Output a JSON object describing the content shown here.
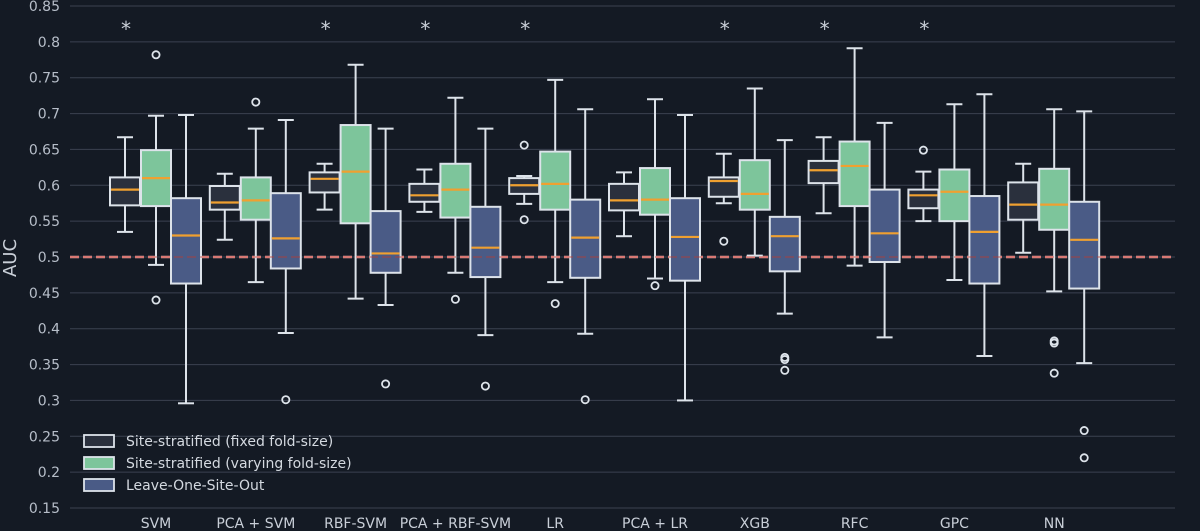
{
  "chart_data": {
    "type": "box",
    "ylabel": "AUC",
    "ylim": [
      0.15,
      0.85
    ],
    "yticks": [
      "0.15",
      "0.2",
      "0.25",
      "0.3",
      "0.35",
      "0.4",
      "0.45",
      "0.5",
      "0.55",
      "0.6",
      "0.65",
      "0.7",
      "0.75",
      "0.8",
      "0.85"
    ],
    "grid": "horizontal",
    "legend_position": "bottom-left",
    "reference_line": 0.5,
    "significance_marker": "*",
    "colors": {
      "background": "#141a24",
      "grid": "#3b4250",
      "fixed": "#2a303d",
      "varying": "#7dc59b",
      "loso": "#4a5b86",
      "median": "#f0a030",
      "outline": "#dde3ea",
      "reference": "#e8a0a0"
    },
    "series": [
      {
        "name": "Site-stratified (fixed fold-size)",
        "key": "fixed"
      },
      {
        "name": "Site-stratified (varying fold-size)",
        "key": "varying"
      },
      {
        "name": "Leave-One-Site-Out",
        "key": "loso"
      }
    ],
    "categories": [
      {
        "label": "SVM",
        "significant": true,
        "boxes": [
          {
            "whislo": 0.535,
            "q1": 0.572,
            "med": 0.594,
            "q3": 0.611,
            "whishi": 0.667,
            "fliers": []
          },
          {
            "whislo": 0.489,
            "q1": 0.571,
            "med": 0.61,
            "q3": 0.649,
            "whishi": 0.697,
            "fliers": [
              0.782,
              0.44
            ]
          },
          {
            "whislo": 0.296,
            "q1": 0.463,
            "med": 0.53,
            "q3": 0.582,
            "whishi": 0.698,
            "fliers": []
          }
        ]
      },
      {
        "label": "PCA + SVM",
        "significant": false,
        "boxes": [
          {
            "whislo": 0.524,
            "q1": 0.566,
            "med": 0.576,
            "q3": 0.599,
            "whishi": 0.616,
            "fliers": []
          },
          {
            "whislo": 0.465,
            "q1": 0.552,
            "med": 0.579,
            "q3": 0.611,
            "whishi": 0.679,
            "fliers": [
              0.716
            ]
          },
          {
            "whislo": 0.394,
            "q1": 0.484,
            "med": 0.526,
            "q3": 0.589,
            "whishi": 0.691,
            "fliers": [
              0.301
            ]
          }
        ]
      },
      {
        "label": "RBF-SVM",
        "significant": true,
        "boxes": [
          {
            "whislo": 0.566,
            "q1": 0.59,
            "med": 0.609,
            "q3": 0.618,
            "whishi": 0.63,
            "fliers": []
          },
          {
            "whislo": 0.442,
            "q1": 0.547,
            "med": 0.619,
            "q3": 0.684,
            "whishi": 0.768,
            "fliers": []
          },
          {
            "whislo": 0.433,
            "q1": 0.478,
            "med": 0.505,
            "q3": 0.564,
            "whishi": 0.679,
            "fliers": [
              0.323
            ]
          }
        ]
      },
      {
        "label": "PCA + RBF-SVM",
        "significant": true,
        "boxes": [
          {
            "whislo": 0.563,
            "q1": 0.577,
            "med": 0.586,
            "q3": 0.602,
            "whishi": 0.622,
            "fliers": []
          },
          {
            "whislo": 0.478,
            "q1": 0.555,
            "med": 0.594,
            "q3": 0.63,
            "whishi": 0.722,
            "fliers": [
              0.441
            ]
          },
          {
            "whislo": 0.391,
            "q1": 0.472,
            "med": 0.513,
            "q3": 0.57,
            "whishi": 0.679,
            "fliers": [
              0.32
            ]
          }
        ]
      },
      {
        "label": "LR",
        "significant": true,
        "boxes": [
          {
            "whislo": 0.574,
            "q1": 0.588,
            "med": 0.6,
            "q3": 0.61,
            "whishi": 0.613,
            "fliers": [
              0.656,
              0.552
            ]
          },
          {
            "whislo": 0.465,
            "q1": 0.566,
            "med": 0.602,
            "q3": 0.647,
            "whishi": 0.747,
            "fliers": [
              0.435
            ]
          },
          {
            "whislo": 0.393,
            "q1": 0.471,
            "med": 0.527,
            "q3": 0.58,
            "whishi": 0.706,
            "fliers": [
              0.301
            ]
          }
        ]
      },
      {
        "label": "PCA + LR",
        "significant": false,
        "boxes": [
          {
            "whislo": 0.529,
            "q1": 0.565,
            "med": 0.579,
            "q3": 0.602,
            "whishi": 0.618,
            "fliers": []
          },
          {
            "whislo": 0.47,
            "q1": 0.559,
            "med": 0.58,
            "q3": 0.624,
            "whishi": 0.72,
            "fliers": [
              0.46
            ]
          },
          {
            "whislo": 0.3,
            "q1": 0.467,
            "med": 0.528,
            "q3": 0.582,
            "whishi": 0.698,
            "fliers": []
          }
        ]
      },
      {
        "label": "XGB",
        "significant": true,
        "boxes": [
          {
            "whislo": 0.575,
            "q1": 0.584,
            "med": 0.606,
            "q3": 0.611,
            "whishi": 0.644,
            "fliers": [
              0.522
            ]
          },
          {
            "whislo": 0.502,
            "q1": 0.566,
            "med": 0.588,
            "q3": 0.635,
            "whishi": 0.735,
            "fliers": []
          },
          {
            "whislo": 0.421,
            "q1": 0.48,
            "med": 0.529,
            "q3": 0.556,
            "whishi": 0.663,
            "fliers": [
              0.36,
              0.357,
              0.342
            ]
          }
        ]
      },
      {
        "label": "RFC",
        "significant": true,
        "boxes": [
          {
            "whislo": 0.561,
            "q1": 0.603,
            "med": 0.621,
            "q3": 0.634,
            "whishi": 0.667,
            "fliers": []
          },
          {
            "whislo": 0.488,
            "q1": 0.571,
            "med": 0.627,
            "q3": 0.661,
            "whishi": 0.791,
            "fliers": []
          },
          {
            "whislo": 0.388,
            "q1": 0.493,
            "med": 0.533,
            "q3": 0.594,
            "whishi": 0.687,
            "fliers": []
          }
        ]
      },
      {
        "label": "GPC",
        "significant": true,
        "boxes": [
          {
            "whislo": 0.55,
            "q1": 0.568,
            "med": 0.586,
            "q3": 0.594,
            "whishi": 0.619,
            "fliers": [
              0.649
            ]
          },
          {
            "whislo": 0.468,
            "q1": 0.55,
            "med": 0.591,
            "q3": 0.622,
            "whishi": 0.713,
            "fliers": []
          },
          {
            "whislo": 0.362,
            "q1": 0.463,
            "med": 0.535,
            "q3": 0.585,
            "whishi": 0.727,
            "fliers": []
          }
        ]
      },
      {
        "label": "NN",
        "significant": false,
        "boxes": [
          {
            "whislo": 0.506,
            "q1": 0.552,
            "med": 0.573,
            "q3": 0.604,
            "whishi": 0.63,
            "fliers": []
          },
          {
            "whislo": 0.452,
            "q1": 0.538,
            "med": 0.573,
            "q3": 0.623,
            "whishi": 0.706,
            "fliers": [
              0.383,
              0.38,
              0.338
            ]
          },
          {
            "whislo": 0.352,
            "q1": 0.456,
            "med": 0.524,
            "q3": 0.577,
            "whishi": 0.703,
            "fliers": [
              0.258,
              0.22
            ]
          }
        ]
      }
    ]
  }
}
